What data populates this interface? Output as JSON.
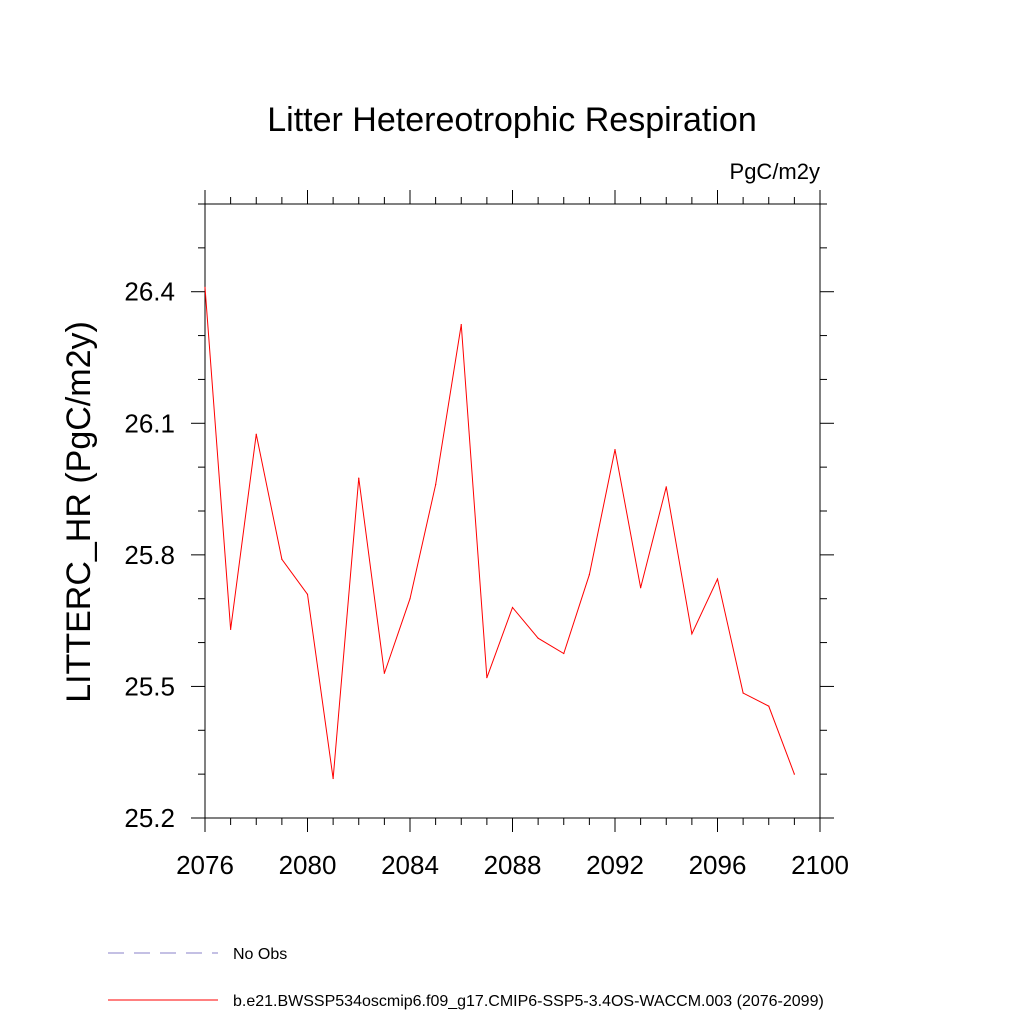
{
  "chart_data": {
    "type": "line",
    "title": "Litter Hetereotrophic Respiration",
    "units_label": "PgC/m2y",
    "xlabel": "",
    "ylabel": "LITTERC_HR  (PgC/m2y)",
    "xlim": [
      2076,
      2100
    ],
    "ylim": [
      25.2,
      26.6
    ],
    "x_ticks": [
      2076,
      2080,
      2084,
      2088,
      2092,
      2096,
      2100
    ],
    "x_tick_labels": [
      "2076",
      "2080",
      "2084",
      "2088",
      "2092",
      "2096",
      "2100"
    ],
    "x_minor_step": 1,
    "y_ticks": [
      25.2,
      25.5,
      25.8,
      26.1,
      26.4
    ],
    "y_tick_labels": [
      "25.2",
      "25.5",
      "25.8",
      "26.1",
      "26.4"
    ],
    "y_minor_step": 0.1,
    "grid": false,
    "series": [
      {
        "name": "b.e21.BWSSP534oscmip6.f09_g17.CMIP6-SSP5-3.4OS-WACCM.003 (2076-2099)",
        "color": "#ff0000",
        "x": [
          2076,
          2077,
          2078,
          2079,
          2080,
          2081,
          2082,
          2083,
          2084,
          2085,
          2086,
          2087,
          2088,
          2089,
          2090,
          2091,
          2092,
          2093,
          2094,
          2095,
          2096,
          2097,
          2098,
          2099
        ],
        "values": [
          26.41,
          25.63,
          26.075,
          25.79,
          25.71,
          25.29,
          25.975,
          25.53,
          25.7,
          25.96,
          26.325,
          25.52,
          25.68,
          25.61,
          25.575,
          25.755,
          26.04,
          25.725,
          25.955,
          25.62,
          25.745,
          25.485,
          25.455,
          25.3
        ]
      }
    ],
    "legend": {
      "placement": "bottom-left",
      "entries": [
        {
          "label": "No Obs",
          "color": "#8a82c8",
          "style": "dashed"
        },
        {
          "label": "b.e21.BWSSP534oscmip6.f09_g17.CMIP6-SSP5-3.4OS-WACCM.003 (2076-2099)",
          "color": "#ff0000",
          "style": "solid"
        }
      ]
    }
  }
}
